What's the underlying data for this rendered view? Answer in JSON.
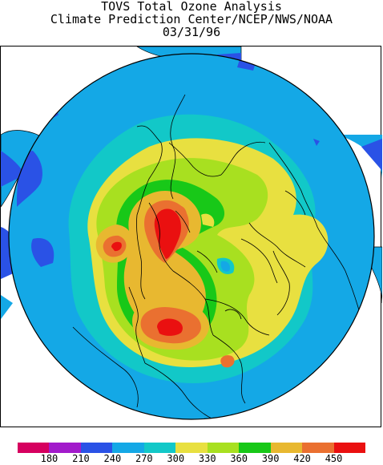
{
  "header": {
    "line1": "TOVS Total Ozone Analysis",
    "line2": "Climate Prediction Center/NCEP/NWS/NOAA",
    "line3": "03/31/96"
  },
  "legend": {
    "colors": [
      "#d6005f",
      "#a21acb",
      "#2a52e6",
      "#14a8e6",
      "#12c8c8",
      "#e8e040",
      "#a8e020",
      "#18c818",
      "#e8b830",
      "#ea7030",
      "#ea1010"
    ],
    "ticks": [
      "180",
      "210",
      "240",
      "270",
      "300",
      "330",
      "360",
      "390",
      "420",
      "450"
    ]
  },
  "map": {
    "projection": "north-polar-stereographic"
  }
}
